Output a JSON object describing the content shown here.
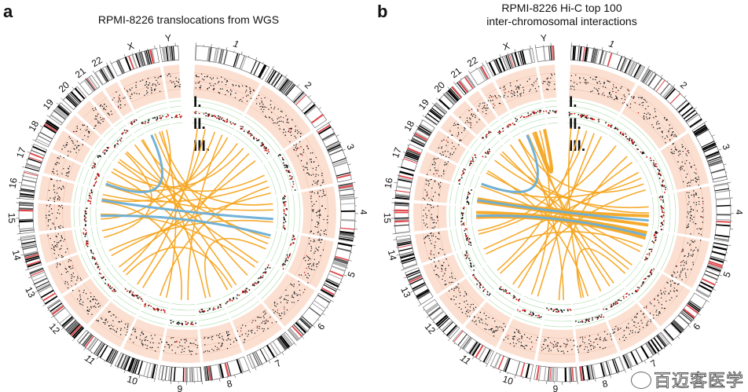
{
  "panels": [
    {
      "letter": "a",
      "title_lines": [
        "RPMI-8226 translocations from WGS"
      ],
      "tracks": [
        "I.",
        "II.",
        "III."
      ],
      "links": [
        [
          "1",
          0.35,
          "12",
          0.4,
          "orange"
        ],
        [
          "1",
          0.6,
          "14",
          0.7,
          "orange"
        ],
        [
          "1",
          0.8,
          "9",
          0.3,
          "orange"
        ],
        [
          "2",
          0.2,
          "16",
          0.5,
          "orange"
        ],
        [
          "2",
          0.6,
          "11",
          0.3,
          "orange"
        ],
        [
          "3",
          0.3,
          "19",
          0.6,
          "orange"
        ],
        [
          "3",
          0.7,
          "10",
          0.5,
          "orange"
        ],
        [
          "4",
          0.4,
          "17",
          0.4,
          "orange"
        ],
        [
          "4",
          0.8,
          "13",
          0.6,
          "orange"
        ],
        [
          "5",
          0.3,
          "20",
          0.5,
          "orange"
        ],
        [
          "5",
          0.7,
          "8",
          0.4,
          "orange"
        ],
        [
          "6",
          0.4,
          "15",
          0.6,
          "orange"
        ],
        [
          "6",
          0.8,
          "X",
          0.3,
          "orange"
        ],
        [
          "7",
          0.3,
          "21",
          0.5,
          "orange"
        ],
        [
          "7",
          0.7,
          "18",
          0.4,
          "orange"
        ],
        [
          "8",
          0.6,
          "22",
          0.5,
          "orange"
        ],
        [
          "9",
          0.6,
          "16",
          0.3,
          "orange"
        ],
        [
          "10",
          0.2,
          "X",
          0.6,
          "orange"
        ],
        [
          "11",
          0.6,
          "1",
          0.15,
          "orange"
        ],
        [
          "12",
          0.7,
          "2",
          0.85,
          "orange"
        ],
        [
          "13",
          0.3,
          "3",
          0.9,
          "orange"
        ],
        [
          "14",
          0.3,
          "20",
          0.3,
          "orange"
        ],
        [
          "15",
          0.3,
          "X",
          0.8,
          "orange"
        ],
        [
          "17",
          0.7,
          "1",
          0.95,
          "orange"
        ],
        [
          "18",
          0.7,
          "2",
          0.4,
          "orange"
        ],
        [
          "19",
          0.3,
          "6",
          0.2,
          "orange"
        ],
        [
          "22",
          0.3,
          "4",
          0.2,
          "orange"
        ],
        [
          "X",
          0.5,
          "5",
          0.5,
          "orange"
        ],
        [
          "16",
          0.8,
          "3",
          0.5,
          "orange"
        ],
        [
          "12",
          0.2,
          "7",
          0.5,
          "orange"
        ],
        [
          "16",
          0.4,
          "4",
          0.7,
          "blue"
        ],
        [
          "15",
          0.5,
          "5",
          0.2,
          "blue"
        ],
        [
          "17",
          0.5,
          "X",
          0.15,
          "blue"
        ]
      ]
    },
    {
      "letter": "b",
      "title_lines": [
        "RPMI-8226 Hi-C top 100",
        "inter-chromosomal interactions"
      ],
      "tracks": [
        "I.",
        "II.",
        "III."
      ],
      "links": [
        [
          "16",
          0.5,
          "4",
          0.6,
          "orange-thick"
        ],
        [
          "15",
          0.7,
          "5",
          0.1,
          "orange-thick"
        ],
        [
          "16",
          0.3,
          "4",
          0.9,
          "orange-thick"
        ],
        [
          "15",
          0.4,
          "5",
          0.3,
          "orange-thick"
        ],
        [
          "1",
          0.3,
          "12",
          0.5,
          "orange"
        ],
        [
          "1",
          0.7,
          "10",
          0.4,
          "orange"
        ],
        [
          "2",
          0.3,
          "14",
          0.5,
          "orange"
        ],
        [
          "2",
          0.7,
          "9",
          0.5,
          "orange"
        ],
        [
          "3",
          0.4,
          "17",
          0.5,
          "orange"
        ],
        [
          "3",
          0.8,
          "11",
          0.6,
          "orange"
        ],
        [
          "4",
          0.3,
          "19",
          0.5,
          "orange"
        ],
        [
          "5",
          0.6,
          "13",
          0.4,
          "orange"
        ],
        [
          "6",
          0.3,
          "20",
          0.5,
          "orange"
        ],
        [
          "6",
          0.7,
          "8",
          0.6,
          "orange"
        ],
        [
          "7",
          0.4,
          "21",
          0.5,
          "orange"
        ],
        [
          "7",
          0.8,
          "X",
          0.4,
          "orange"
        ],
        [
          "8",
          0.3,
          "18",
          0.5,
          "orange"
        ],
        [
          "9",
          0.3,
          "22",
          0.5,
          "orange"
        ],
        [
          "10",
          0.7,
          "X",
          0.7,
          "orange"
        ],
        [
          "11",
          0.3,
          "1",
          0.9,
          "orange"
        ],
        [
          "12",
          0.3,
          "2",
          0.9,
          "orange"
        ],
        [
          "13",
          0.7,
          "3",
          0.2,
          "orange"
        ],
        [
          "14",
          0.7,
          "1",
          0.5,
          "orange"
        ],
        [
          "17",
          0.3,
          "6",
          0.5,
          "orange"
        ],
        [
          "18",
          0.3,
          "5",
          0.8,
          "orange"
        ],
        [
          "X",
          0.2,
          "7",
          0.2,
          "orange"
        ],
        [
          "22",
          0.6,
          "3",
          0.6,
          "orange"
        ],
        [
          "20",
          0.2,
          "4",
          0.5,
          "orange"
        ],
        [
          "X",
          0.5,
          "X",
          0.9,
          "orange-thick"
        ],
        [
          "1",
          0.1,
          "8",
          0.5,
          "orange"
        ],
        [
          "16",
          0.4,
          "4",
          0.75,
          "blue"
        ],
        [
          "15",
          0.5,
          "5",
          0.2,
          "blue"
        ],
        [
          "17",
          0.5,
          "X",
          0.15,
          "blue"
        ]
      ]
    }
  ],
  "chromosomes": [
    {
      "name": "1",
      "length": 249
    },
    {
      "name": "2",
      "length": 243
    },
    {
      "name": "3",
      "length": 198
    },
    {
      "name": "4",
      "length": 191
    },
    {
      "name": "5",
      "length": 181
    },
    {
      "name": "6",
      "length": 171
    },
    {
      "name": "7",
      "length": 159
    },
    {
      "name": "8",
      "length": 146
    },
    {
      "name": "9",
      "length": 141
    },
    {
      "name": "10",
      "length": 136
    },
    {
      "name": "11",
      "length": 135
    },
    {
      "name": "12",
      "length": 134
    },
    {
      "name": "13",
      "length": 115
    },
    {
      "name": "14",
      "length": 107
    },
    {
      "name": "15",
      "length": 103
    },
    {
      "name": "16",
      "length": 90
    },
    {
      "name": "17",
      "length": 81
    },
    {
      "name": "18",
      "length": 78
    },
    {
      "name": "19",
      "length": 59
    },
    {
      "name": "20",
      "length": 63
    },
    {
      "name": "21",
      "length": 48
    },
    {
      "name": "22",
      "length": 51
    },
    {
      "name": "X",
      "length": 155
    },
    {
      "name": "Y",
      "length": 59
    }
  ],
  "colors": {
    "orange": "#f5a623",
    "blue": "#6aaed6",
    "track_I": "#fbe0d2",
    "track_II": "#e6f6e6",
    "band_red": "#e0454a",
    "dot_red": "#cc1111"
  },
  "watermark": "百迈客医学"
}
